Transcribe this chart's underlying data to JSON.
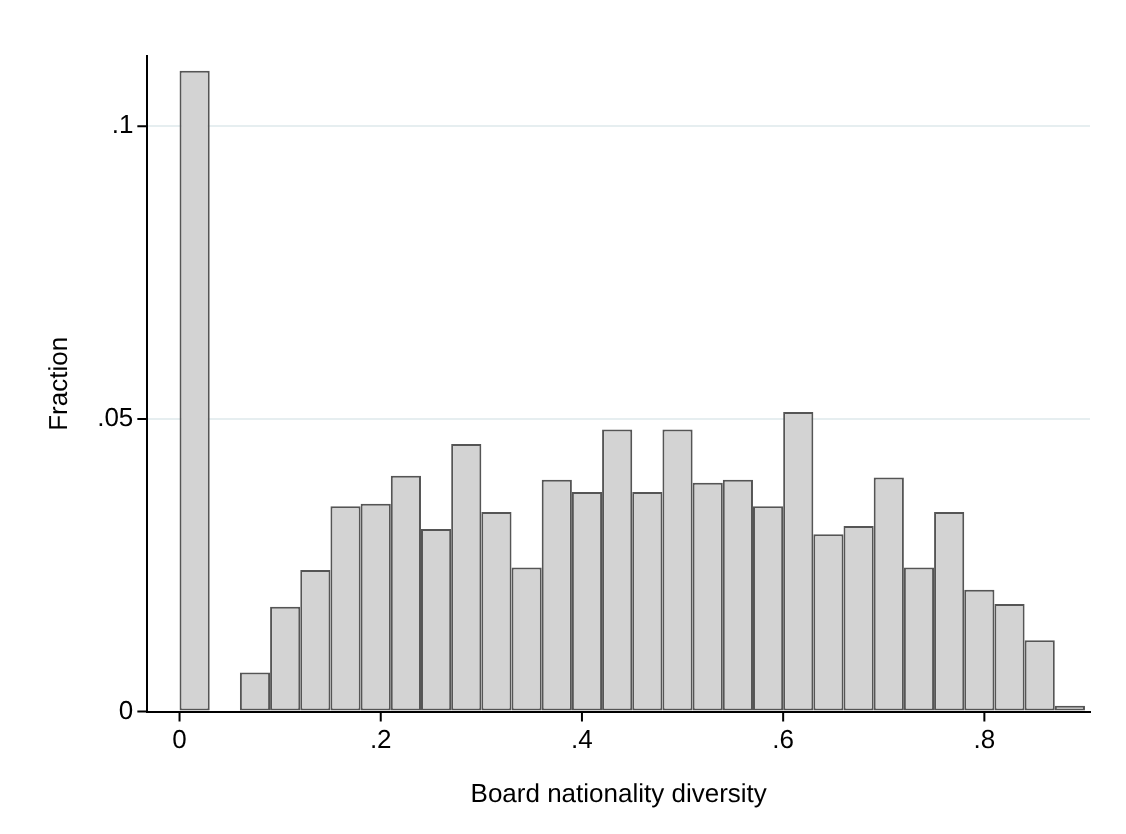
{
  "chart_data": {
    "type": "histogram",
    "xlabel": "Board nationality diversity",
    "ylabel": "Fraction",
    "bins": [
      0,
      0.03,
      0.06,
      0.09,
      0.12,
      0.15,
      0.18,
      0.21,
      0.24,
      0.27,
      0.3,
      0.33,
      0.36,
      0.39,
      0.42,
      0.45,
      0.48,
      0.51,
      0.54,
      0.57,
      0.6,
      0.63,
      0.66,
      0.69,
      0.72,
      0.75,
      0.78,
      0.81,
      0.84,
      0.87,
      0.9
    ],
    "values": [
      0.1095,
      0,
      0.0067,
      0.0179,
      0.0242,
      0.0351,
      0.0355,
      0.0403,
      0.0312,
      0.0457,
      0.0341,
      0.0246,
      0.0396,
      0.0375,
      0.0482,
      0.0375,
      0.0482,
      0.0391,
      0.0396,
      0.0351,
      0.0512,
      0.0303,
      0.0317,
      0.04,
      0.0246,
      0.0341,
      0.0208,
      0.0184,
      0.0122,
      0.001
    ],
    "color": "#d3d3d3",
    "xlim": [
      -0.032,
      0.905
    ],
    "xticks": [
      0,
      {
        "value": 0.2,
        "label": ".2"
      },
      {
        "value": 0.4,
        "label": ".4"
      },
      {
        "value": 0.6,
        "label": ".6"
      },
      {
        "value": 0.8,
        "label": ".8"
      }
    ],
    "ylim": [
      0,
      0.112
    ],
    "yticks": [
      0,
      {
        "value": 0.05,
        "label": ".05"
      },
      {
        "value": 0.1,
        "label": ".1"
      }
    ],
    "grid": "y",
    "legend": false
  }
}
